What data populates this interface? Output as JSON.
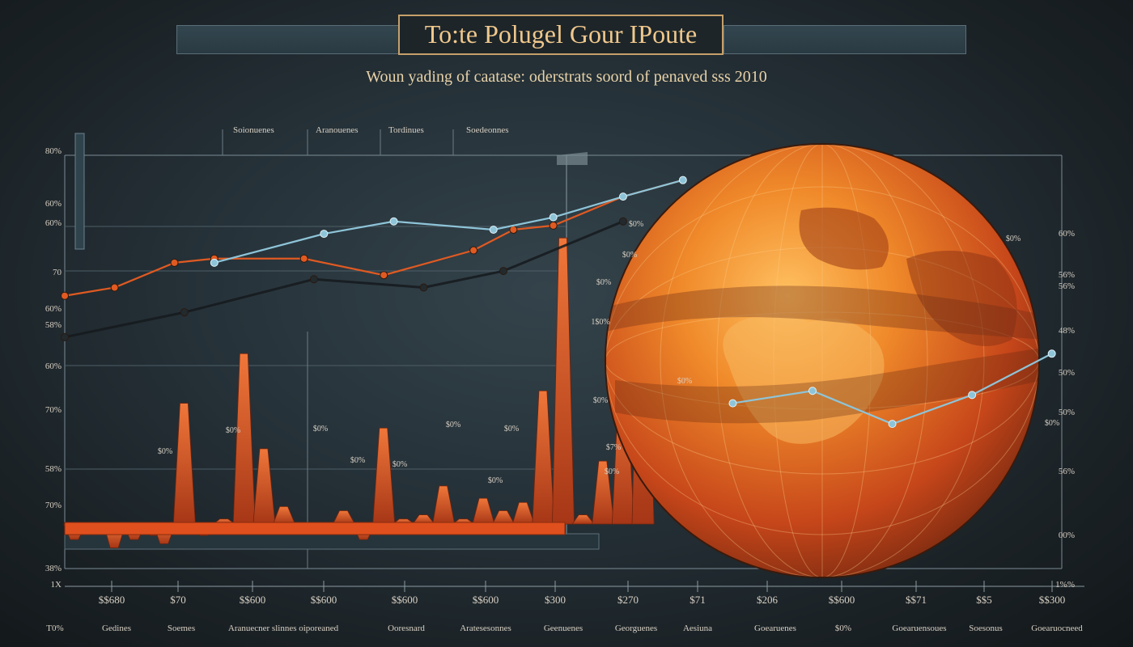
{
  "title": "To:te Polugel Gour IPoute",
  "subtitle": "Woun yading of caatase: oderstrats soord of penaved sss 2010",
  "legend": [
    "Soionuenes",
    "Aranouenes",
    "Tordinues",
    "Soedeonnes"
  ],
  "colors": {
    "orange": "#e05a22",
    "blue": "#8ec4d8",
    "dark": "#151a1d",
    "globe": "#e8701c"
  },
  "y_axis_left": [
    "80%",
    "60%",
    "60%",
    "70",
    "60%",
    "58%",
    "60%",
    "70%",
    "58%",
    "70%",
    "38%",
    "1X"
  ],
  "y_axis_right": [
    "60%",
    "56%",
    "56%",
    "48%",
    "50%",
    "50%",
    "56%",
    "00%",
    "1%%"
  ],
  "x_tick_labels": [
    "$$680",
    "$70",
    "$$600",
    "$$600",
    "$$600",
    "$$600",
    "$300",
    "$270",
    "$71",
    "$206",
    "$$600",
    "$$71",
    "$$5",
    "$$300"
  ],
  "x_category_labels": [
    "T0%",
    "Gedines",
    "Soemes",
    "Aranuecner slinnes oiporeaned",
    "Ooresnard",
    "Aratesesonnes",
    "Geenuenes",
    "Georguenes",
    "Aesiuna",
    "Goearuenes",
    "$0%",
    "Goearuensoues",
    "Soesonus",
    "Goearuocneed"
  ],
  "chart_labels": [
    "$0%",
    "$0%",
    "$0%",
    "$0%",
    "$0%",
    "$0%",
    "$0%",
    "$0%",
    "$0%",
    "$0%",
    "$0%",
    "1$0%",
    "$7%",
    "$0%",
    "$0%",
    "$0%",
    "$0%",
    "$0%"
  ],
  "chart_data": {
    "type": "line",
    "title": "To:te Polugel Gour IPoute",
    "ylim": [
      0,
      100
    ],
    "series": [
      {
        "color": "orange",
        "x": [
          0,
          5,
          11,
          15,
          24,
          32,
          41,
          45,
          49,
          56,
          62
        ],
        "values": [
          66,
          68,
          74,
          75,
          75,
          71,
          77,
          82,
          83,
          90,
          94
        ]
      },
      {
        "color": "blue",
        "x": [
          15,
          26,
          33,
          43,
          49,
          56,
          62
        ],
        "values": [
          74,
          81,
          84,
          82,
          85,
          90,
          94
        ]
      },
      {
        "color": "dark",
        "x": [
          0,
          12,
          25,
          36,
          44,
          56
        ],
        "values": [
          56,
          62,
          70,
          68,
          72,
          84
        ]
      },
      {
        "color": "blue",
        "x": [
          67,
          75,
          83,
          91,
          99
        ],
        "values": [
          40,
          43,
          35,
          42,
          52
        ]
      }
    ],
    "bars": {
      "x": [
        1,
        3,
        5,
        7,
        9,
        10,
        12,
        14,
        16,
        17,
        18,
        20,
        22,
        24,
        26,
        28,
        30,
        32,
        34,
        36,
        38,
        40,
        42,
        44,
        46,
        48,
        50,
        52,
        54,
        56,
        58
      ],
      "values": [
        7,
        9,
        5,
        7,
        8,
        6,
        40,
        8,
        12,
        10,
        52,
        29,
        15,
        11,
        9,
        14,
        7,
        34,
        12,
        13,
        20,
        12,
        17,
        14,
        16,
        43,
        80,
        13,
        26,
        44,
        78
      ]
    }
  }
}
